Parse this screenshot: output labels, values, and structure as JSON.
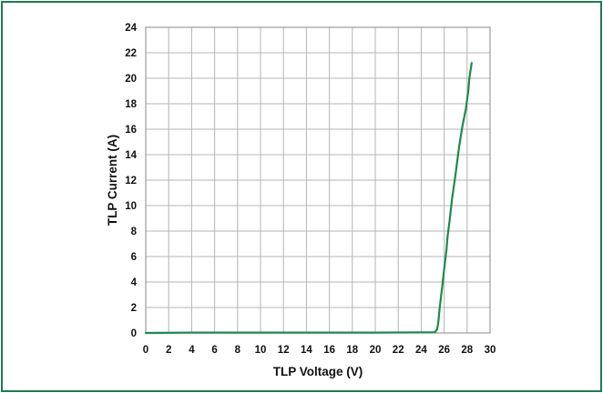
{
  "chart_data": {
    "type": "line",
    "title": "",
    "xlabel": "TLP Voltage (V)",
    "ylabel": "TLP Current (A)",
    "xlim": [
      0,
      30
    ],
    "ylim": [
      0,
      24
    ],
    "x_ticks": [
      "0",
      "2",
      "4",
      "6",
      "8",
      "10",
      "12",
      "14",
      "16",
      "18",
      "20",
      "22",
      "24",
      "26",
      "28",
      "30"
    ],
    "y_ticks": [
      "0",
      "2",
      "4",
      "6",
      "8",
      "10",
      "12",
      "14",
      "16",
      "18",
      "20",
      "22",
      "24"
    ],
    "grid": true,
    "legend": "none",
    "colors": {
      "line": "#1e8a4c",
      "frame": "#1f7a50",
      "grid": "#b4b4b4"
    },
    "series": [
      {
        "points": [
          [
            0,
            0
          ],
          [
            4,
            0.03
          ],
          [
            10,
            0.03
          ],
          [
            20,
            0.03
          ],
          [
            24,
            0.04
          ],
          [
            25.2,
            0.06
          ],
          [
            25.4,
            0.3
          ],
          [
            25.5,
            0.9
          ],
          [
            25.6,
            1.9
          ],
          [
            25.8,
            3.4
          ],
          [
            26.0,
            5.0
          ],
          [
            26.2,
            6.5
          ],
          [
            26.3,
            7.6
          ],
          [
            26.5,
            9.0
          ],
          [
            26.7,
            10.6
          ],
          [
            27.0,
            12.5
          ],
          [
            27.3,
            14.6
          ],
          [
            27.6,
            16.3
          ],
          [
            27.9,
            17.6
          ],
          [
            28.1,
            19.0
          ],
          [
            28.2,
            20.0
          ],
          [
            28.4,
            21.2
          ]
        ]
      }
    ]
  }
}
